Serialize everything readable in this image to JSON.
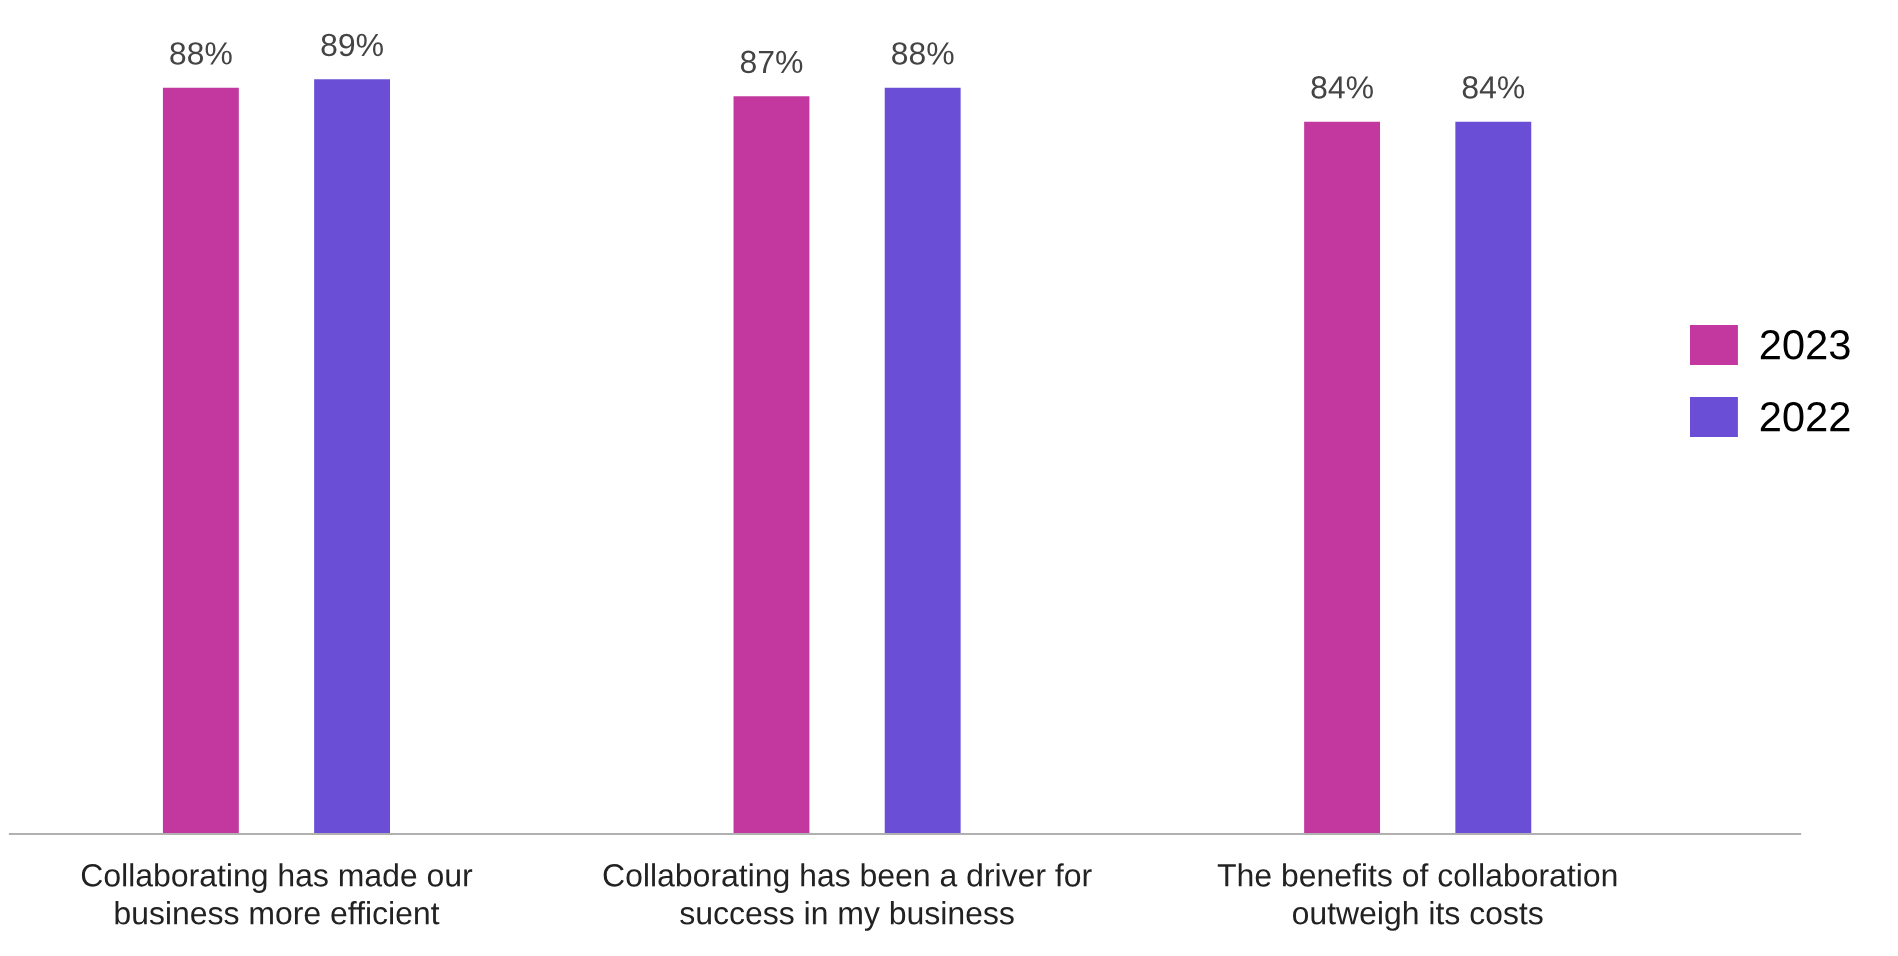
{
  "chart_data": {
    "type": "bar",
    "categories": [
      "Collaborating has made our business more efficient",
      "Collaborating has been a driver for success in my business",
      "The benefits of collaboration outweigh its costs"
    ],
    "series": [
      {
        "name": "2023",
        "color": "#c2389f",
        "values": [
          88,
          87,
          84
        ],
        "value_labels": [
          "88%",
          "87%",
          "84%"
        ]
      },
      {
        "name": "2022",
        "color": "#6a4fd6",
        "values": [
          89,
          88,
          84
        ],
        "value_labels": [
          "89%",
          "88%",
          "84%"
        ]
      }
    ],
    "legend": "right"
  }
}
